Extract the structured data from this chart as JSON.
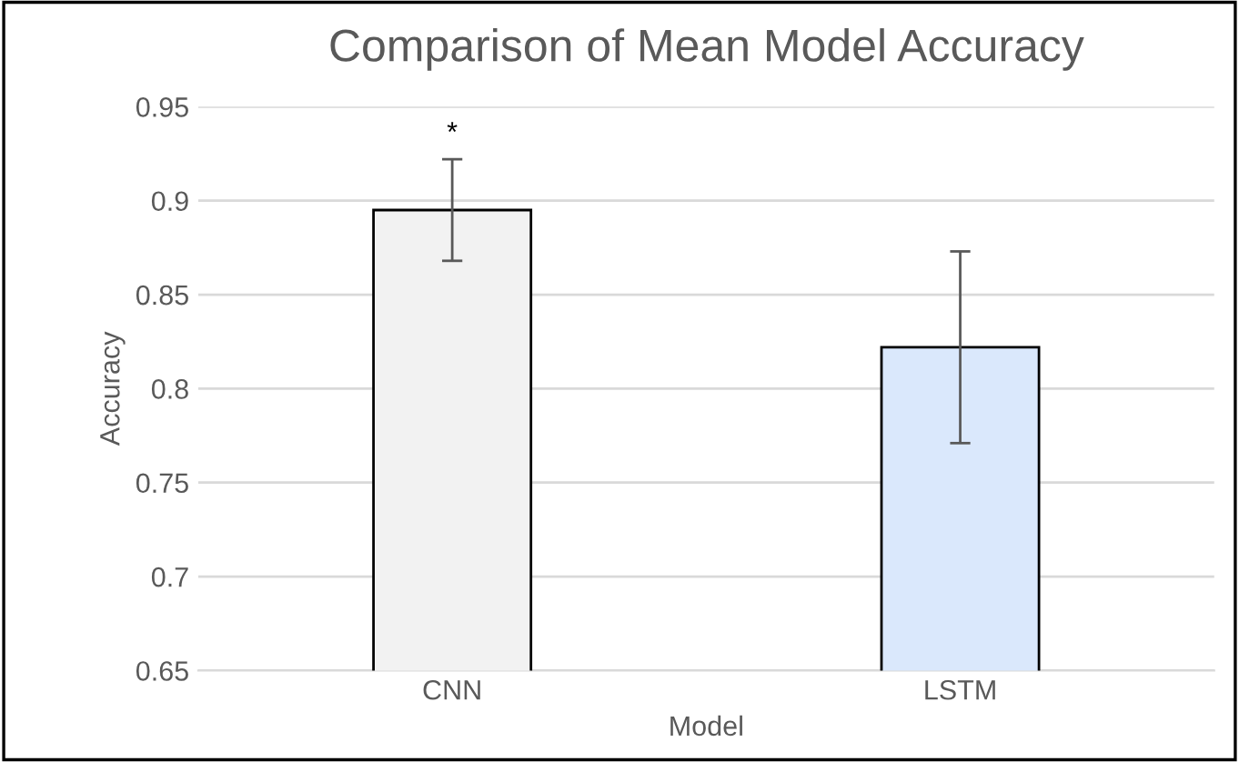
{
  "chart_data": {
    "type": "bar",
    "title": "Comparison of Mean Model Accuracy",
    "xlabel": "Model",
    "ylabel": "Accuracy",
    "categories": [
      "CNN",
      "LSTM"
    ],
    "values": [
      0.895,
      0.822
    ],
    "colors": [
      "#f2f2f2",
      "#dae8fc"
    ],
    "errors": [
      0.027,
      0.051
    ],
    "annotations": [
      "*"
    ],
    "ylim": [
      0.65,
      0.95
    ],
    "yticks": [
      0.65,
      0.7,
      0.75,
      0.8,
      0.85,
      0.9,
      0.95
    ],
    "grid": "y"
  }
}
